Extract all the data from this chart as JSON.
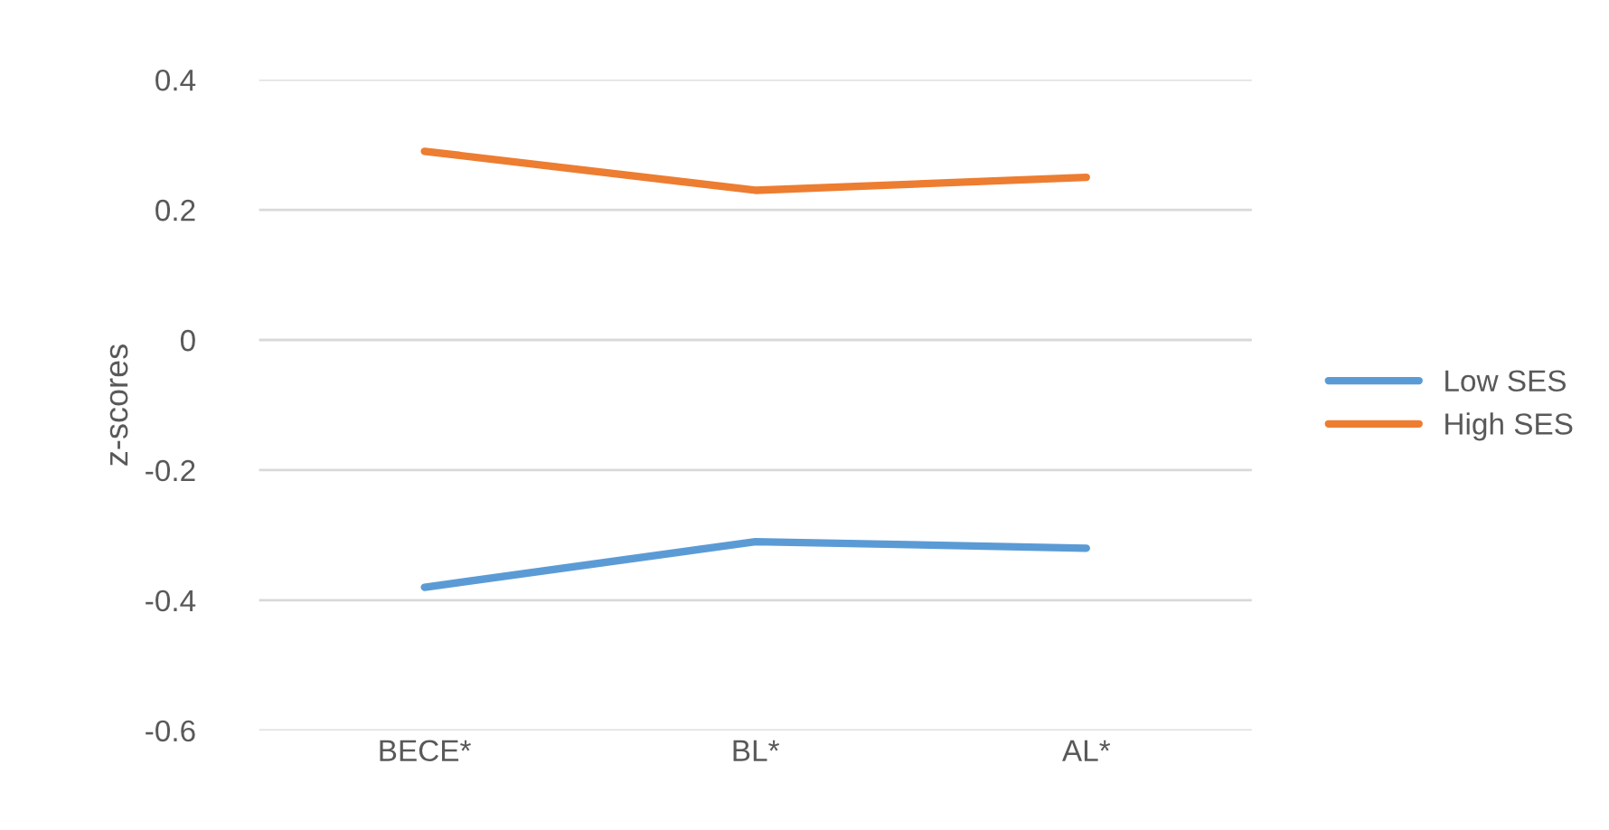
{
  "chart_data": {
    "type": "line",
    "ylabel": "z-scores",
    "categories": [
      "BECE*",
      "BL*",
      "AL*"
    ],
    "series": [
      {
        "name": "Low SES",
        "color": "#5b9bd5",
        "values": [
          -0.38,
          -0.31,
          -0.32
        ]
      },
      {
        "name": "High SES",
        "color": "#ed7d31",
        "values": [
          0.29,
          0.23,
          0.25
        ]
      }
    ],
    "ylim": [
      -0.6,
      0.4
    ],
    "yticks": [
      -0.6,
      -0.4,
      -0.2,
      0,
      0.2,
      0.4
    ],
    "grid": "y",
    "legend": "right",
    "marker": "none",
    "line_style": "solid"
  }
}
